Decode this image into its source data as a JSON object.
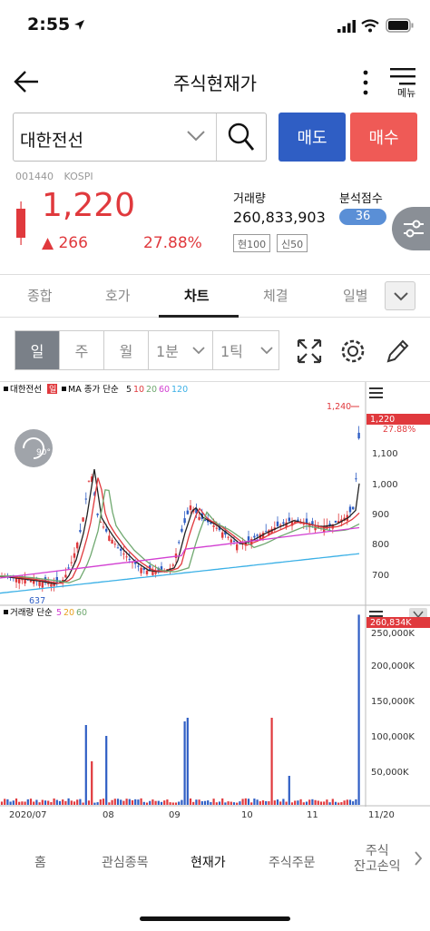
{
  "status": {
    "time": "2:55"
  },
  "header": {
    "title": "주식현재가",
    "menu_label": "메뉴"
  },
  "search": {
    "stock_name": "대한전선"
  },
  "actions": {
    "sell": "매도",
    "buy": "매수"
  },
  "stock": {
    "code": "001440",
    "market": "KOSPI",
    "price": "1,220",
    "change": "▲ 266",
    "change_pct": "27.88%",
    "volume_label": "거래량",
    "volume": "260,833,903",
    "tag1": "현100",
    "tag2": "신50",
    "score_label": "분석점수",
    "score": "36"
  },
  "tabs": [
    "종합",
    "호가",
    "차트",
    "체결",
    "일별"
  ],
  "active_tab": "차트",
  "periods": [
    "일",
    "주",
    "월",
    "1분",
    "1틱"
  ],
  "chart": {
    "legend_name": "대한전선",
    "legend_badge": "일",
    "ma_label": "MA 종가 단순",
    "ma_periods": [
      "5",
      "10",
      "20",
      "60",
      "120"
    ],
    "ma_colors": [
      "#222222",
      "#e0393d",
      "#6fa86f",
      "#d23fd2",
      "#3bb0e6"
    ],
    "rotate_label": "90°",
    "high_label": "1,240",
    "low_label": "637",
    "current_price_label": "1,220",
    "current_pct_label": "27.88%",
    "price_ticks": [
      "1,100",
      "1,000",
      "900",
      "800",
      "700"
    ],
    "volume_legend": "거래량 단순",
    "volume_ma": [
      "5",
      "20",
      "60"
    ],
    "volume_badge": "260,834K",
    "volume_ticks": [
      "250,000K",
      "200,000K",
      "150,000K",
      "100,000K",
      "50,000K"
    ],
    "x_ticks": [
      "2020/07",
      "08",
      "09",
      "10",
      "11",
      "11/20"
    ]
  },
  "bottom_nav": [
    "홈",
    "관심종목",
    "현재가",
    "주식주문",
    "주식",
    "잔고손익"
  ],
  "active_nav": "현재가"
}
